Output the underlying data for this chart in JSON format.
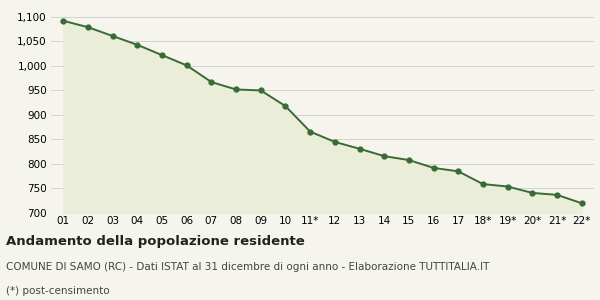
{
  "x_labels": [
    "01",
    "02",
    "03",
    "04",
    "05",
    "06",
    "07",
    "08",
    "09",
    "10",
    "11*",
    "12",
    "13",
    "14",
    "15",
    "16",
    "17",
    "18*",
    "19*",
    "20*",
    "21*",
    "22*"
  ],
  "y_values": [
    1092,
    1079,
    1061,
    1043,
    1022,
    1001,
    967,
    952,
    950,
    918,
    866,
    845,
    831,
    816,
    808,
    792,
    785,
    759,
    754,
    741,
    737,
    720
  ],
  "line_color": "#3a6b35",
  "fill_color": "#eaedd8",
  "marker_color": "#3a6b35",
  "bg_color": "#f5f5ee",
  "grid_color": "#cccccc",
  "ylim_min": 700,
  "ylim_max": 1110,
  "yticks": [
    700,
    750,
    800,
    850,
    900,
    950,
    1000,
    1050,
    1100
  ],
  "title": "Andamento della popolazione residente",
  "subtitle": "COMUNE DI SAMO (RC) - Dati ISTAT al 31 dicembre di ogni anno - Elaborazione TUTTITALIA.IT",
  "footnote": "(*) post-censimento",
  "title_fontsize": 9.5,
  "subtitle_fontsize": 7.5,
  "footnote_fontsize": 7.5,
  "tick_fontsize": 7.5,
  "ytick_fontsize": 7.5
}
